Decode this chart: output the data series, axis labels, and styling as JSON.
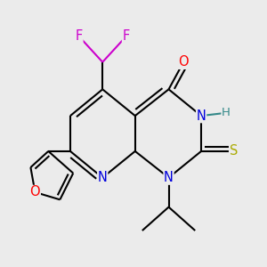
{
  "bg_color": "#ebebeb",
  "lw": 1.5,
  "dbo": 0.018,
  "fs": 10.5,
  "colors": {
    "bond": "#000000",
    "N": "#0000dd",
    "O": "#ff0000",
    "S": "#aaaa00",
    "F": "#cc00cc",
    "H": "#338888",
    "C": "#000000"
  }
}
